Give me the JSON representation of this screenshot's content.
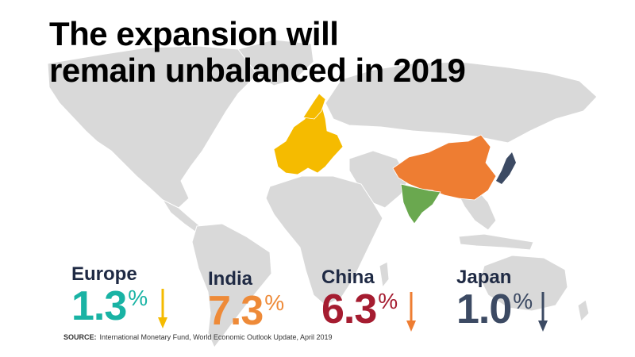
{
  "title": {
    "line1": "The expansion will",
    "line2": "remain unbalanced in 2019"
  },
  "stats": [
    {
      "region": "Europe",
      "value": "1.3",
      "unit": "%",
      "color": "#19b3a4",
      "arrow_color": "#f5bb00",
      "arrow": "down"
    },
    {
      "region": "India",
      "value": "7.3",
      "unit": "%",
      "color": "#ee8a38",
      "arrow_color": "#ee8a38",
      "arrow": "none"
    },
    {
      "region": "China",
      "value": "6.3",
      "unit": "%",
      "color": "#a51c30",
      "arrow_color": "#ee7d32",
      "arrow": "down"
    },
    {
      "region": "Japan",
      "value": "1.0",
      "unit": "%",
      "color": "#3c4a63",
      "arrow_color": "#3c4a63",
      "arrow": "down"
    }
  ],
  "map_colors": {
    "land": "#d9d9d9",
    "europe": "#f5bb00",
    "china": "#ee7d32",
    "india": "#6aa84f",
    "japan": "#3c4a63"
  },
  "source": {
    "label": "SOURCE:",
    "text": "International Monetary Fund, World Economic Outlook Update, April 2019"
  }
}
